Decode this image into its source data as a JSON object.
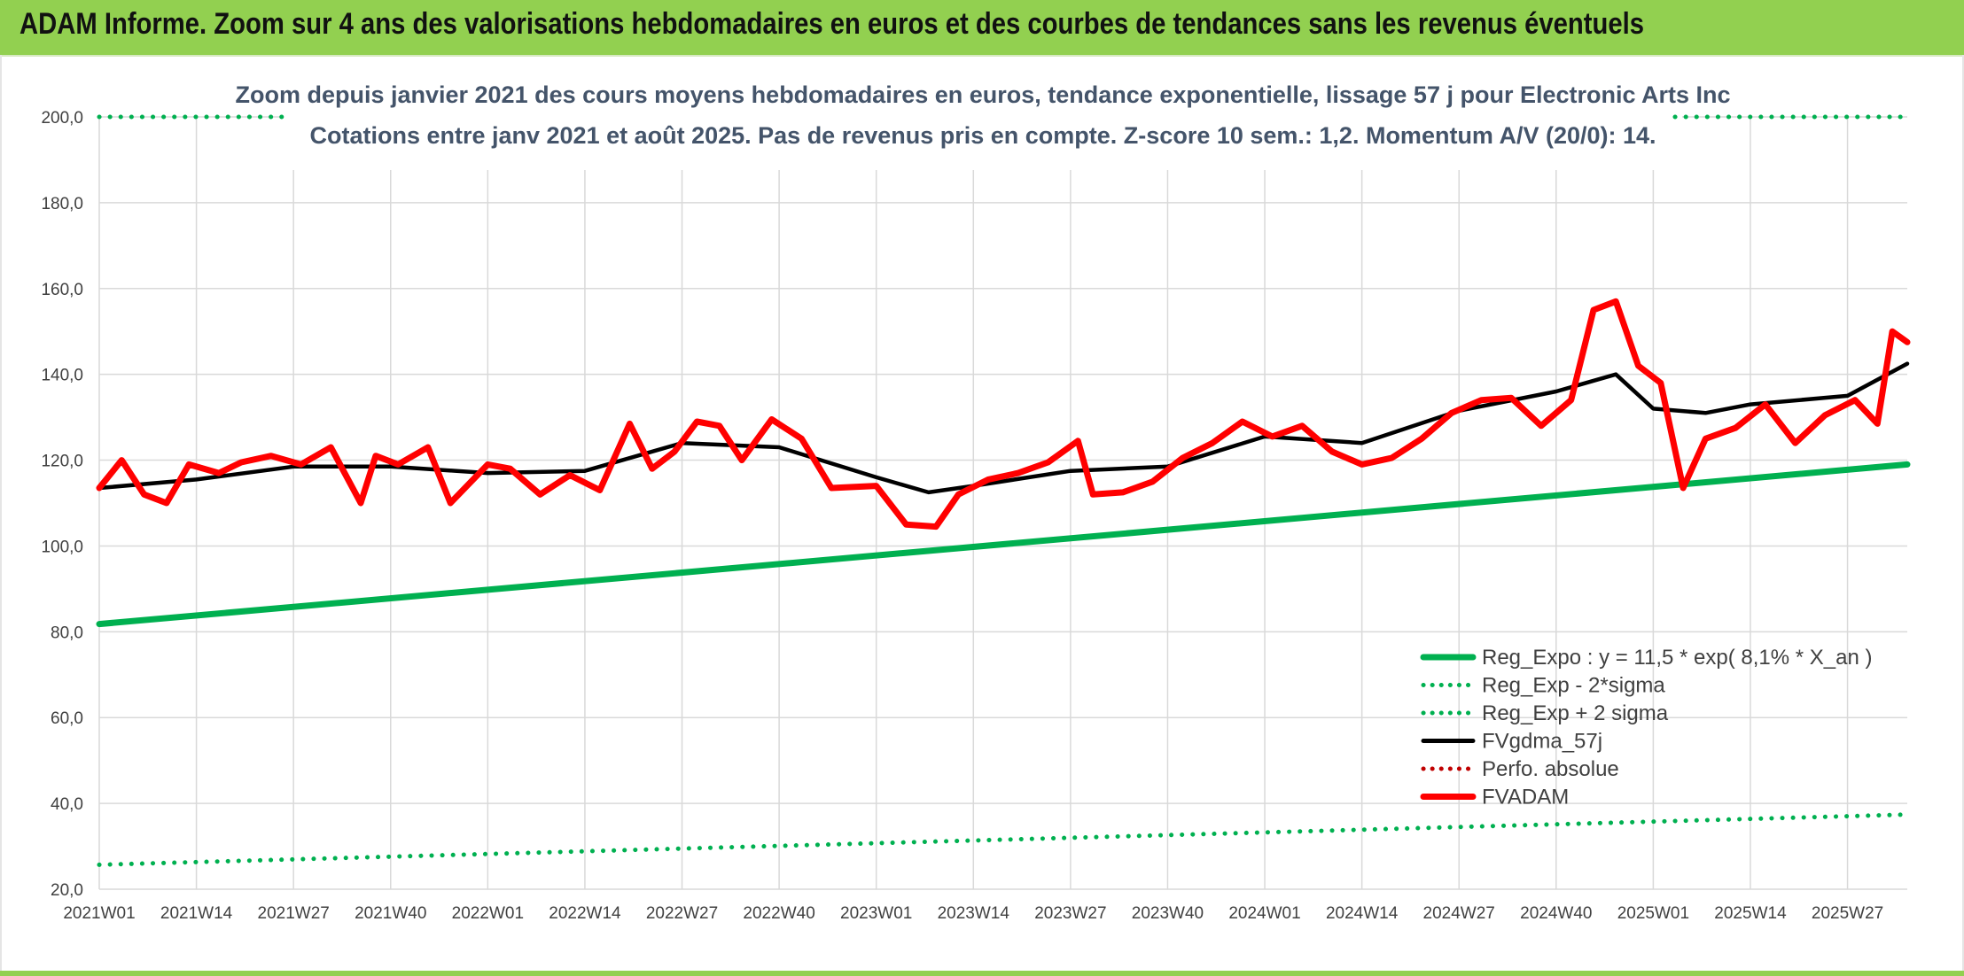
{
  "banner": {
    "title": "ADAM Informe. Zoom sur 4 ans des valorisations hebdomadaires en euros et des courbes de tendances sans les revenus éventuels"
  },
  "colors": {
    "banner_bg": "#92d050",
    "reg_expo": "#00b050",
    "fvgdma": "#000000",
    "fvadam": "#ff0000",
    "perfo": "#c00000",
    "grid": "#d9d9d9",
    "subtitle": "#44546a"
  },
  "chart_data": {
    "type": "line",
    "title": "Zoom depuis janvier 2021 des cours moyens hebdomadaires en euros, tendance exponentielle, lissage 57 j pour Electronic Arts Inc",
    "subtitle": "Cotations entre janv 2021 et août 2025. Pas de revenus pris en compte. Z-score 10 sem.: 1,2. Momentum A/V (20/0): 14.",
    "xlabel": "",
    "ylabel": "",
    "ylim": [
      20,
      200
    ],
    "grid": true,
    "legend_position": "bottom-right",
    "x_ticks": [
      "2021W01",
      "2021W14",
      "2021W27",
      "2021W40",
      "2022W01",
      "2022W14",
      "2022W27",
      "2022W40",
      "2023W01",
      "2023W14",
      "2023W27",
      "2023W40",
      "2024W01",
      "2024W14",
      "2024W27",
      "2024W40",
      "2025W01",
      "2025W14",
      "2025W27"
    ],
    "y_ticks": [
      "20,0",
      "40,0",
      "60,0",
      "80,0",
      "100,0",
      "120,0",
      "140,0",
      "160,0",
      "180,0",
      "200,0"
    ],
    "week_range": {
      "first": "2021W01",
      "last": "2025W35"
    },
    "series": [
      {
        "name": "Reg_Expo : y = 11,5 * exp( 8,1% *  X_an )",
        "style": "solid-thick",
        "color": "#00b050",
        "x": [
          "2021W01",
          "2025W35"
        ],
        "values": [
          81.8,
          119.0
        ]
      },
      {
        "name": "Reg_Exp - 2*sigma",
        "style": "dotted",
        "color": "#00b050",
        "x": [
          "2021W01",
          "2025W35"
        ],
        "values": [
          25.7,
          37.4
        ]
      },
      {
        "name": "Reg_Exp + 2 sigma",
        "style": "dotted",
        "color": "#00b050",
        "x": [
          "2021W01",
          "2025W35"
        ],
        "values": [
          200.0,
          200.0
        ],
        "note_visible": "partial"
      },
      {
        "name": "FVgdma_57j",
        "style": "solid",
        "color": "#000000",
        "x": [
          "2021W01",
          "2021W14",
          "2021W27",
          "2021W40",
          "2022W01",
          "2022W14",
          "2022W27",
          "2022W40",
          "2023W01",
          "2023W08",
          "2023W14",
          "2023W27",
          "2023W40",
          "2024W01",
          "2024W14",
          "2024W27",
          "2024W40",
          "2024W48",
          "2025W01",
          "2025W08",
          "2025W14",
          "2025W27",
          "2025W35"
        ],
        "values": [
          113.5,
          115.5,
          118.5,
          118.5,
          117.0,
          117.5,
          124.0,
          123.0,
          116.0,
          112.5,
          114.0,
          117.5,
          118.5,
          125.5,
          124.0,
          131.5,
          136.0,
          140.0,
          132.0,
          131.0,
          133.0,
          135.0,
          142.5
        ]
      },
      {
        "name": "Perfo. absolue",
        "style": "dotted",
        "color": "#c00000",
        "x": [],
        "values": []
      },
      {
        "name": "FVADAM",
        "style": "solid-thick",
        "color": "#ff0000",
        "x": [
          "2021W01",
          "2021W04",
          "2021W07",
          "2021W10",
          "2021W13",
          "2021W17",
          "2021W20",
          "2021W24",
          "2021W28",
          "2021W32",
          "2021W36",
          "2021W38",
          "2021W41",
          "2021W45",
          "2021W48",
          "2022W01",
          "2022W04",
          "2022W08",
          "2022W12",
          "2022W16",
          "2022W20",
          "2022W23",
          "2022W26",
          "2022W29",
          "2022W32",
          "2022W35",
          "2022W39",
          "2022W43",
          "2022W47",
          "2023W01",
          "2023W05",
          "2023W09",
          "2023W12",
          "2023W16",
          "2023W20",
          "2023W24",
          "2023W28",
          "2023W30",
          "2023W34",
          "2023W38",
          "2023W42",
          "2023W46",
          "2023W50",
          "2024W02",
          "2024W06",
          "2024W10",
          "2024W14",
          "2024W18",
          "2024W22",
          "2024W26",
          "2024W30",
          "2024W34",
          "2024W38",
          "2024W42",
          "2024W45",
          "2024W48",
          "2024W51",
          "2025W02",
          "2025W05",
          "2025W08",
          "2025W12",
          "2025W16",
          "2025W20",
          "2025W24",
          "2025W28",
          "2025W31",
          "2025W33",
          "2025W35"
        ],
        "values": [
          113.5,
          120.0,
          112.0,
          110.0,
          119.0,
          117.0,
          119.5,
          121.0,
          119.0,
          123.0,
          110.0,
          121.0,
          119.0,
          123.0,
          110.0,
          119.0,
          118.0,
          112.0,
          116.5,
          113.0,
          128.5,
          118.0,
          122.0,
          129.0,
          128.0,
          120.0,
          129.5,
          125.0,
          113.5,
          114.0,
          105.0,
          104.5,
          112.0,
          115.5,
          117.0,
          119.5,
          124.5,
          112.0,
          112.5,
          115.0,
          120.5,
          124.0,
          129.0,
          125.5,
          128.0,
          122.0,
          119.0,
          120.5,
          125.0,
          131.0,
          134.0,
          134.5,
          128.0,
          134.0,
          155.0,
          157.0,
          142.0,
          138.0,
          113.5,
          125.0,
          127.5,
          133.0,
          124.0,
          130.5,
          134.0,
          128.5,
          150.0,
          147.5
        ]
      }
    ]
  }
}
